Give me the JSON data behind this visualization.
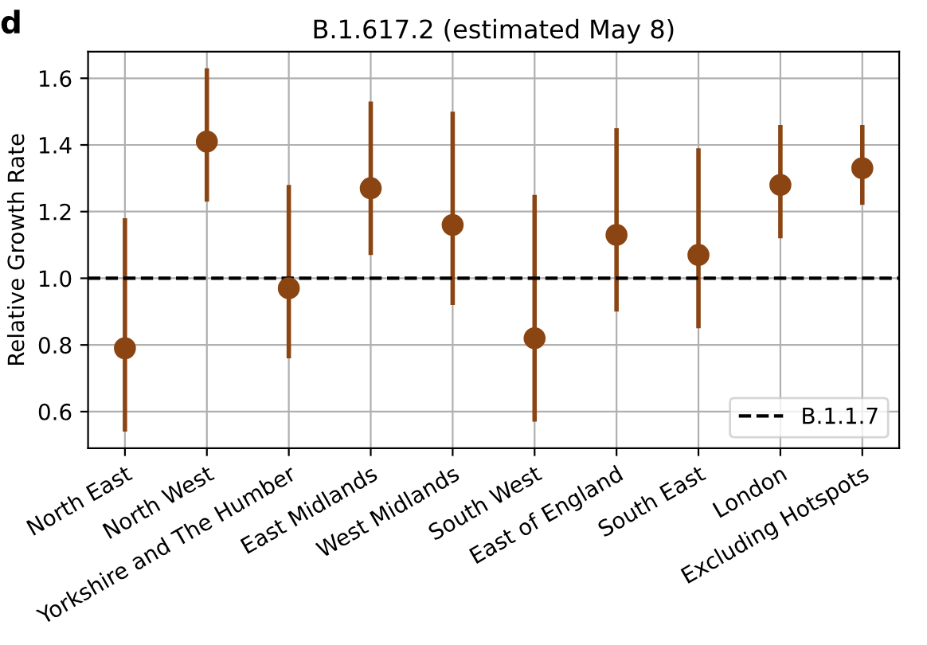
{
  "chart_data": {
    "type": "scatter",
    "title": "B.1.617.2 (estimated May 8)",
    "ylabel": "Relative Growth Rate",
    "annotations": [
      "d"
    ],
    "categories": [
      "North East",
      "North West",
      "Yorkshire and The Humber",
      "East Midlands",
      "West Midlands",
      "South West",
      "East of England",
      "South East",
      "London",
      "Excluding Hotspots"
    ],
    "series": [
      {
        "color": "#8b4513",
        "values": [
          0.79,
          1.41,
          0.97,
          1.27,
          1.16,
          0.82,
          1.13,
          1.07,
          1.28,
          1.33
        ],
        "errors": [
          [
            0.54,
            1.18
          ],
          [
            1.23,
            1.63
          ],
          [
            0.76,
            1.28
          ],
          [
            1.07,
            1.53
          ],
          [
            0.92,
            1.5
          ],
          [
            0.57,
            1.25
          ],
          [
            0.9,
            1.45
          ],
          [
            0.85,
            1.39
          ],
          [
            1.12,
            1.46
          ],
          [
            1.22,
            1.46
          ]
        ]
      }
    ],
    "ylim": [
      0.49,
      1.68
    ],
    "yticks": [
      0.6,
      0.8,
      {
        "value": 1,
        "label": "1.0"
      },
      1.2,
      1.4,
      1.6
    ],
    "ref_lines": [
      {
        "axis": "y",
        "value": 1.0,
        "label": "B.1.1.7",
        "color": "#000000",
        "line_style": "dashed"
      }
    ],
    "grid": true,
    "legend": "lower right",
    "marker": "circle"
  }
}
